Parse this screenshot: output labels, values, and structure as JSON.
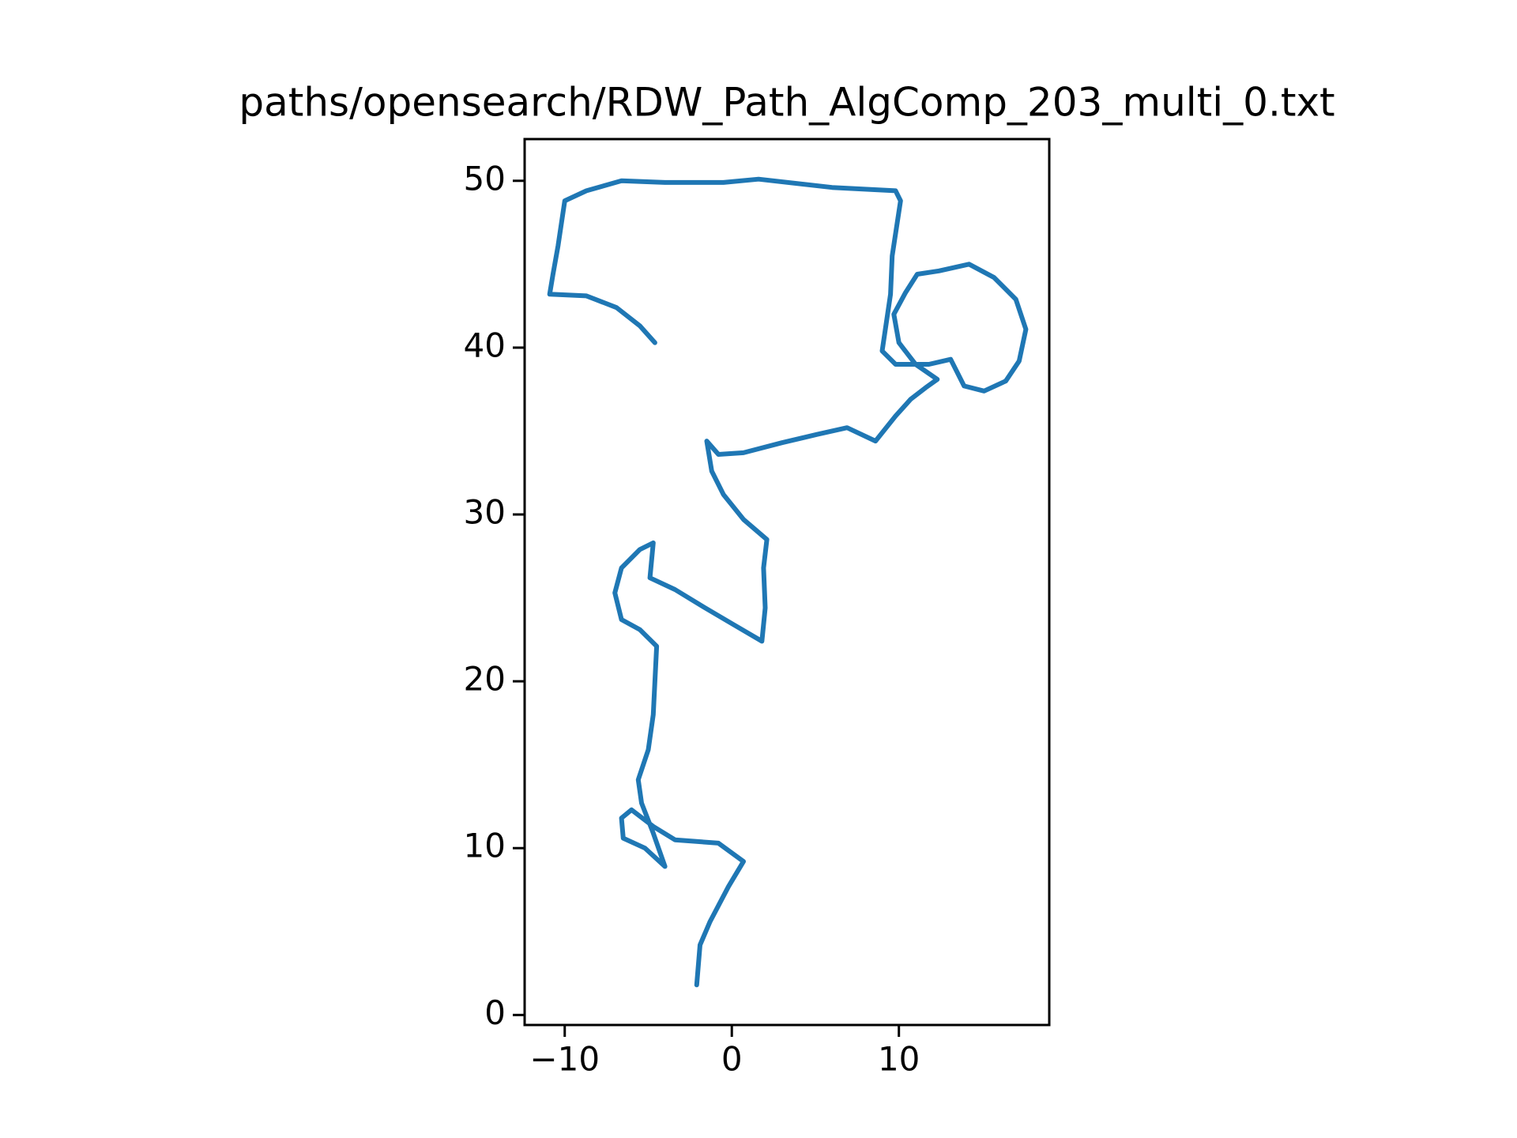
{
  "chart_data": {
    "type": "line",
    "title": "paths/opensearch/RDW_Path_AlgComp_203_multi_0.txt",
    "color": "#1f77b4",
    "x": [
      -4.6,
      -5.5,
      -6.9,
      -8.7,
      -10.9,
      -10.7,
      -10.4,
      -10.0,
      -8.7,
      -6.6,
      -4.0,
      -0.5,
      1.6,
      6.0,
      9.8,
      10.1,
      9.6,
      9.5,
      9.0,
      9.8,
      11.8,
      13.1,
      13.9,
      15.1,
      16.4,
      17.2,
      17.6,
      17.0,
      15.7,
      14.2,
      12.4,
      11.1,
      10.4,
      9.7,
      10.0,
      11.0,
      12.3,
      11.6,
      10.7,
      9.8,
      8.6,
      6.9,
      5.1,
      3.0,
      0.7,
      -0.8,
      -1.5,
      -1.2,
      -0.5,
      0.7,
      2.1,
      1.9,
      2.0,
      1.8,
      0.1,
      -1.6,
      -3.4,
      -4.9,
      -4.7,
      -5.5,
      -6.6,
      -7.0,
      -6.6,
      -5.5,
      -4.5,
      -4.7,
      -5.0,
      -5.6,
      -5.4,
      -4.7,
      -4.0,
      -5.2,
      -6.5,
      -6.6,
      -6.0,
      -4.7,
      -3.4,
      -0.8,
      0.7,
      -0.2,
      -1.3,
      -1.9,
      -2.1
    ],
    "values": [
      40.3,
      41.3,
      42.4,
      43.1,
      43.2,
      44.4,
      46.1,
      48.8,
      49.4,
      50.0,
      49.9,
      49.9,
      50.1,
      49.6,
      49.4,
      48.8,
      45.5,
      43.2,
      39.8,
      39.0,
      39.0,
      39.3,
      37.7,
      37.4,
      38.0,
      39.2,
      41.1,
      42.9,
      44.2,
      45.0,
      44.6,
      44.4,
      43.3,
      42.0,
      40.3,
      39.0,
      38.1,
      37.6,
      36.9,
      35.9,
      34.4,
      35.2,
      34.8,
      34.3,
      33.7,
      33.6,
      34.4,
      32.6,
      31.2,
      29.7,
      28.5,
      26.8,
      24.4,
      22.4,
      23.4,
      24.4,
      25.5,
      26.2,
      28.3,
      27.9,
      26.8,
      25.3,
      23.7,
      23.1,
      22.1,
      18.0,
      15.9,
      14.1,
      12.7,
      10.9,
      8.9,
      10.0,
      10.6,
      11.8,
      12.3,
      11.3,
      10.5,
      10.3,
      9.2,
      7.7,
      5.6,
      4.2,
      1.8
    ],
    "xlim": [
      -12.4,
      19.0
    ],
    "ylim": [
      -0.6,
      52.5
    ],
    "xticks": [
      {
        "value": -10,
        "label": "−10"
      },
      0,
      10
    ],
    "yticks": [
      0,
      10,
      20,
      30,
      40,
      50
    ]
  }
}
